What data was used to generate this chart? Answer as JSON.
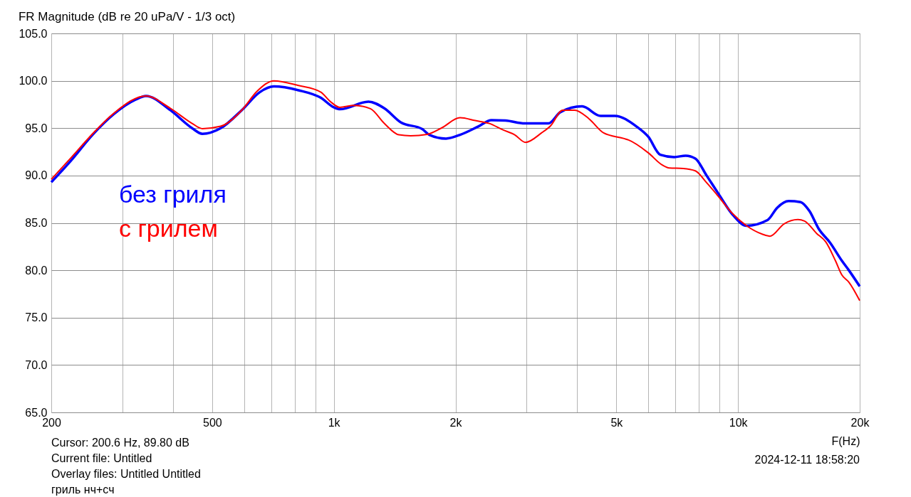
{
  "chart_data": {
    "type": "line",
    "title": "FR Magnitude (dB re 20 uPa/V - 1/3 oct)",
    "xlabel": "F(Hz)",
    "log": "x",
    "grid": true,
    "legend": "left",
    "line_style": "solid",
    "marker": "none",
    "xlim": [
      200,
      20000
    ],
    "ylim": [
      65,
      105
    ],
    "xticks": [
      {
        "value": 200,
        "label": "200"
      },
      {
        "value": 300,
        "label": null
      },
      {
        "value": 400,
        "label": null
      },
      {
        "value": 500,
        "label": "500"
      },
      {
        "value": 600,
        "label": null
      },
      {
        "value": 700,
        "label": null
      },
      {
        "value": 800,
        "label": null
      },
      {
        "value": 900,
        "label": null
      },
      {
        "value": 1000,
        "label": "1k"
      },
      {
        "value": 2000,
        "label": "2k"
      },
      {
        "value": 3000,
        "label": null
      },
      {
        "value": 4000,
        "label": null
      },
      {
        "value": 5000,
        "label": "5k"
      },
      {
        "value": 6000,
        "label": null
      },
      {
        "value": 7000,
        "label": null
      },
      {
        "value": 8000,
        "label": null
      },
      {
        "value": 9000,
        "label": null
      },
      {
        "value": 10000,
        "label": "10k"
      },
      {
        "value": 20000,
        "label": "20k"
      }
    ],
    "yticks": [
      {
        "value": 65,
        "label": "65.0"
      },
      {
        "value": 70,
        "label": "70.0"
      },
      {
        "value": 75,
        "label": "75.0"
      },
      {
        "value": 80,
        "label": "80.0"
      },
      {
        "value": 85,
        "label": "85.0"
      },
      {
        "value": 90,
        "label": "90.0"
      },
      {
        "value": 95,
        "label": "95.0"
      },
      {
        "value": 100,
        "label": "100.0"
      },
      {
        "value": 105,
        "label": "105.0"
      }
    ],
    "series": [
      {
        "name": "без гриля",
        "color": "#0000ff",
        "x": [
          200,
          224,
          253,
          286,
          323,
          343,
          394,
          446,
          473,
          525,
          592,
          656,
          711,
          818,
          929,
          1000,
          1036,
          1218,
          1333,
          1466,
          1655,
          1722,
          1895,
          2053,
          2282,
          2454,
          2659,
          2968,
          3396,
          3638,
          4113,
          4569,
          4955,
          5599,
          5996,
          6420,
          6956,
          7420,
          7840,
          8360,
          8955,
          9685,
          10500,
          11830,
          12500,
          13340,
          14280,
          15020,
          15820,
          16900,
          18070,
          18800,
          20000
        ],
        "values": [
          89.3,
          91.6,
          94.3,
          96.5,
          98.0,
          98.4,
          96.9,
          95.0,
          94.4,
          95.0,
          96.9,
          98.8,
          99.4,
          99.0,
          98.2,
          97.2,
          97.0,
          97.8,
          97.1,
          95.6,
          94.9,
          94.3,
          93.9,
          94.3,
          95.2,
          95.85,
          95.8,
          95.5,
          95.5,
          96.7,
          97.3,
          96.3,
          96.3,
          95.2,
          94.1,
          92.2,
          91.95,
          92.1,
          91.8,
          90.0,
          88.05,
          85.9,
          84.7,
          85.3,
          86.6,
          87.3,
          87.2,
          86.25,
          84.4,
          82.9,
          81.0,
          80.0,
          78.3
        ]
      },
      {
        "name": "с грилем",
        "color": "#ff0000",
        "x": [
          200,
          224,
          253,
          286,
          343,
          394,
          446,
          473,
          525,
          592,
          646,
          711,
          818,
          929,
          981,
          1035,
          1122,
          1232,
          1333,
          1448,
          1549,
          1702,
          1844,
          2053,
          2237,
          2424,
          2627,
          2802,
          2980,
          3265,
          3437,
          3684,
          3943,
          4276,
          4650,
          5228,
          5360,
          5996,
          6500,
          6760,
          7320,
          7840,
          8360,
          8840,
          9685,
          10500,
          11500,
          12000,
          13000,
          14060,
          14600,
          15640,
          16480,
          17420,
          18070,
          18800,
          20000
        ],
        "values": [
          89.6,
          91.9,
          94.4,
          96.6,
          98.4,
          97.1,
          95.5,
          94.95,
          95.2,
          96.9,
          98.9,
          100.0,
          99.5,
          98.8,
          97.8,
          97.2,
          97.4,
          97.05,
          95.5,
          94.3,
          94.2,
          94.35,
          95.0,
          96.1,
          95.8,
          95.5,
          94.8,
          94.3,
          93.5,
          94.5,
          95.25,
          96.9,
          96.9,
          96.0,
          94.5,
          93.9,
          93.75,
          92.4,
          91.1,
          90.8,
          90.75,
          90.5,
          89.25,
          88.05,
          86.0,
          84.7,
          83.8,
          83.6,
          84.9,
          85.35,
          85.2,
          83.9,
          83.0,
          81.0,
          79.5,
          78.75,
          76.8
        ]
      }
    ],
    "annotations": [
      "Cursor: 200.6 Hz, 89.80 dB",
      "Current file: Untitled",
      "Overlay files: Untitled  Untitled",
      "гриль нч+сч",
      "2024-12-11  18:58:20"
    ]
  }
}
